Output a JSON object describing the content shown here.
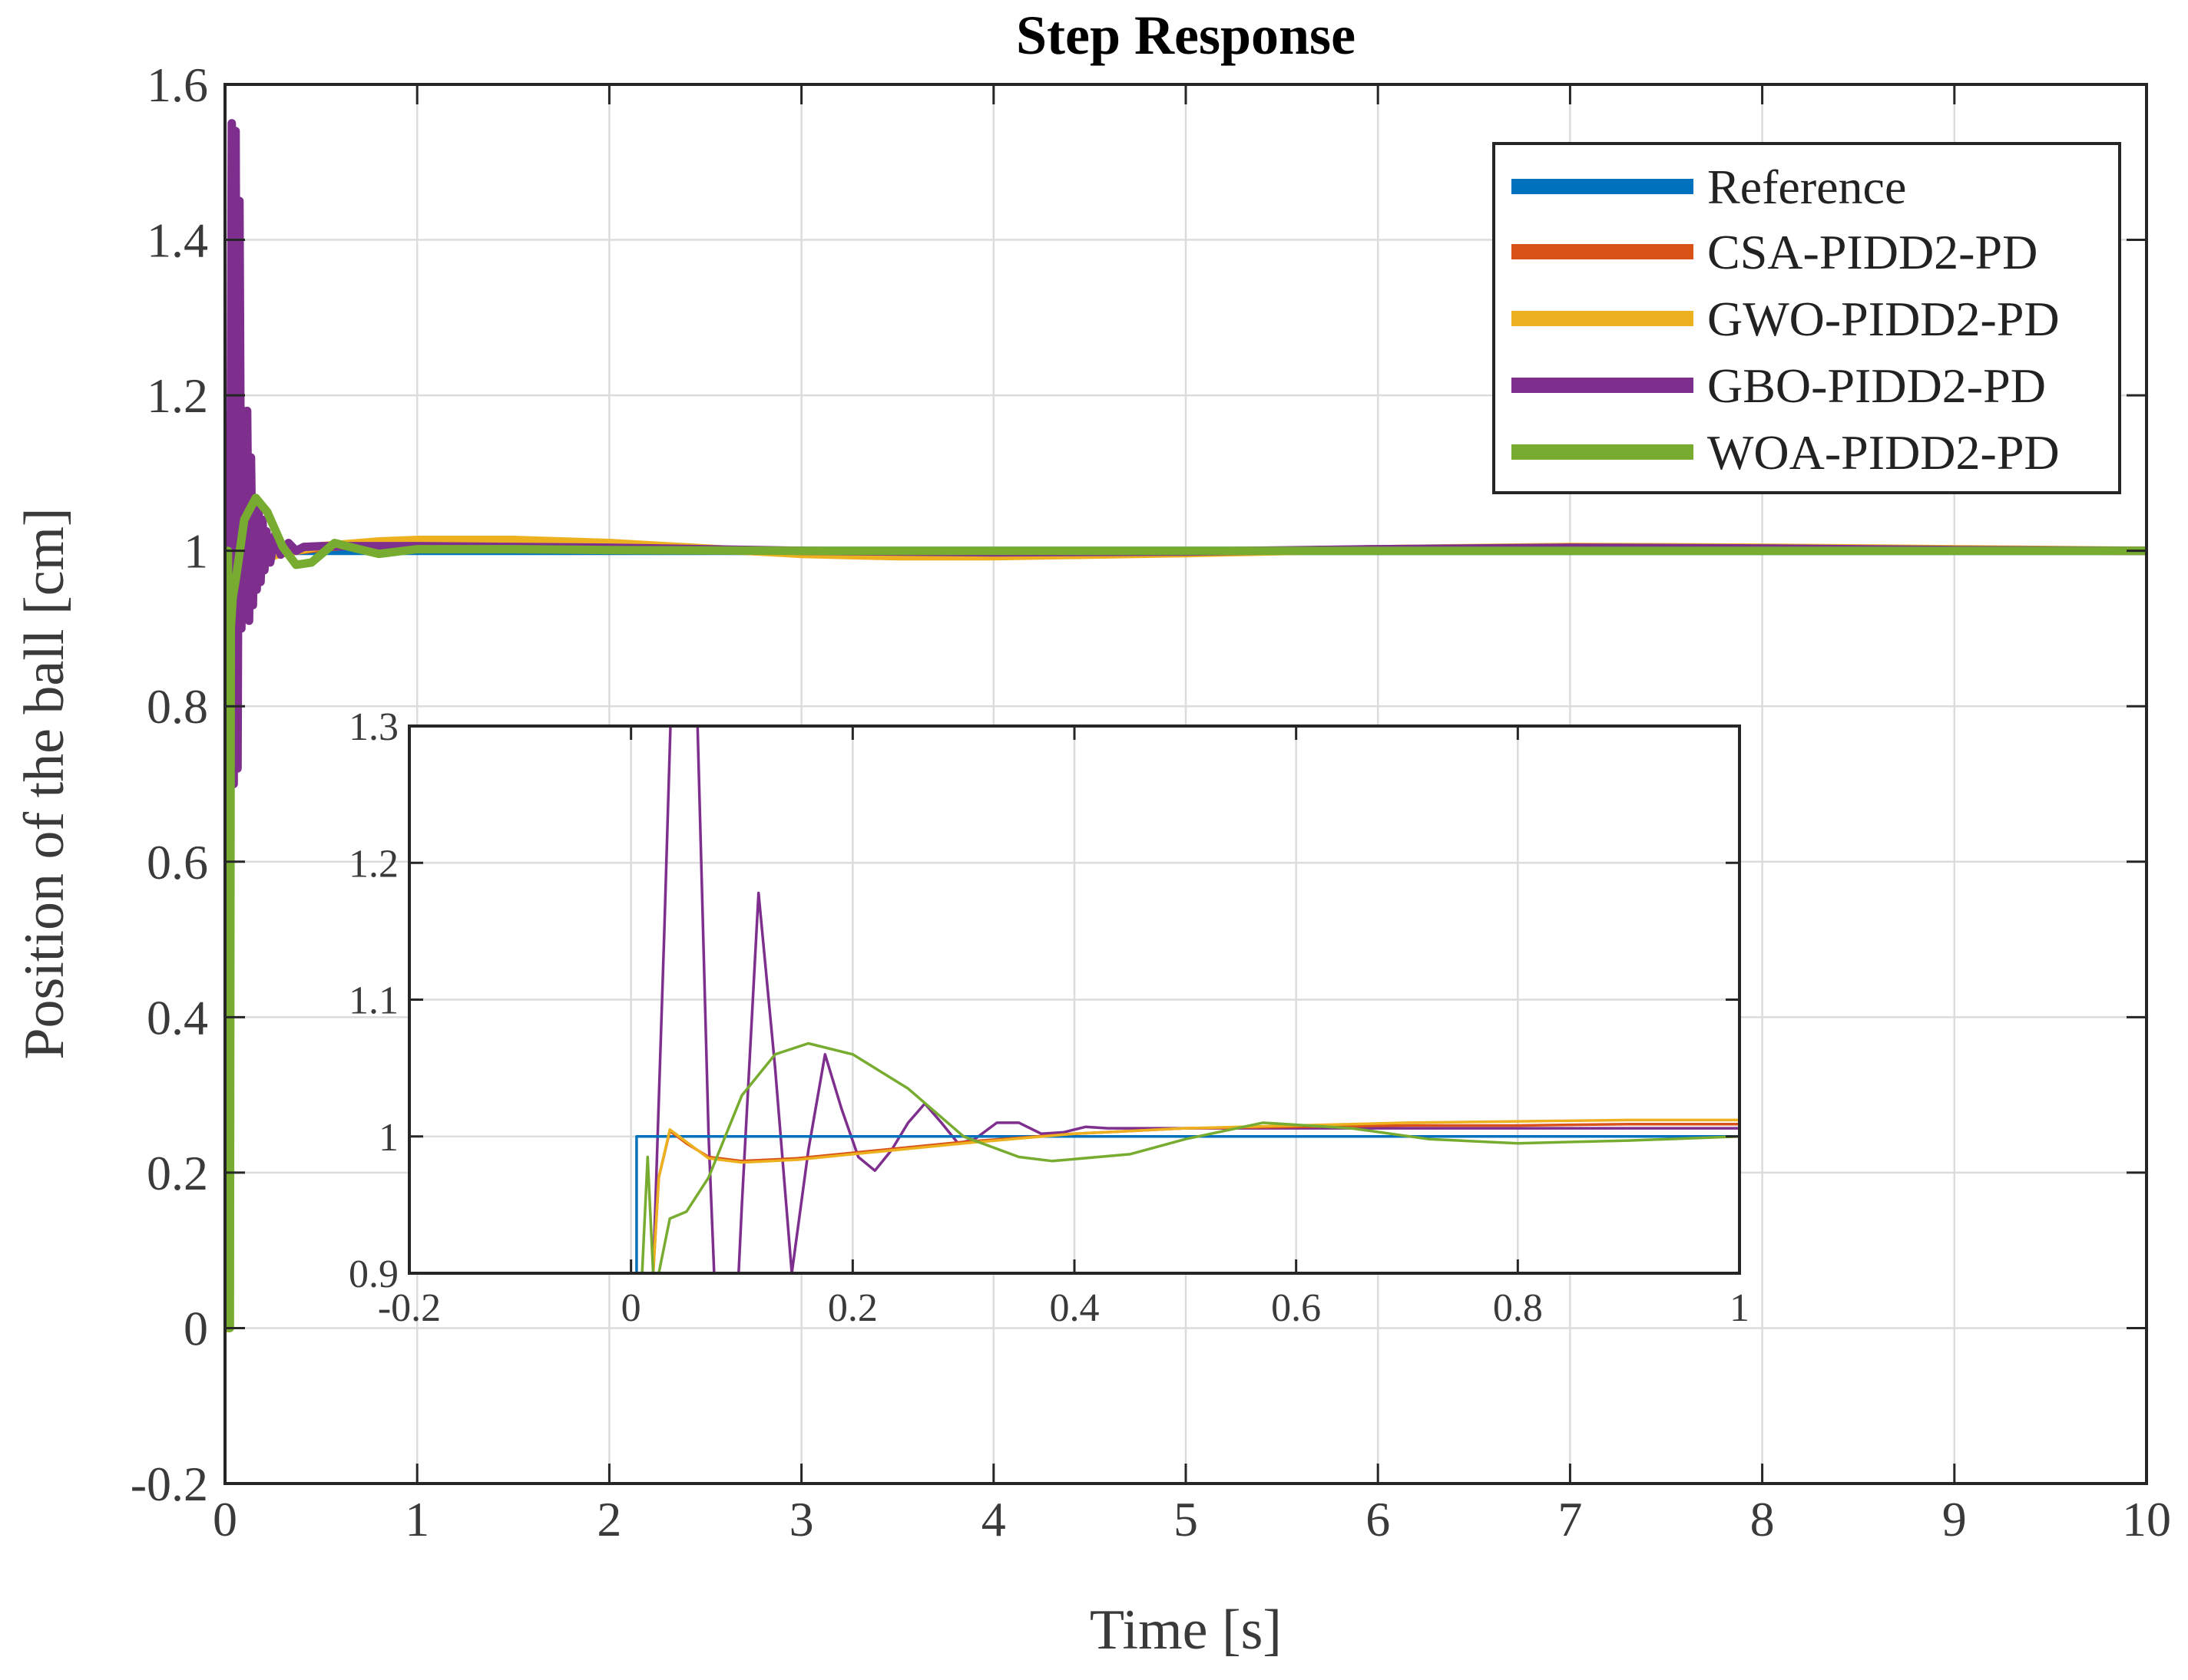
{
  "chart_data": [
    {
      "id": "main",
      "type": "line",
      "title": "Step Response",
      "xlabel": "Time [s]",
      "ylabel": "Position of the ball [cm]",
      "xlim": [
        0,
        10
      ],
      "ylim": [
        -0.2,
        1.6
      ],
      "xticks": [
        0,
        1,
        2,
        3,
        4,
        5,
        6,
        7,
        8,
        9,
        10
      ],
      "yticks": [
        -0.2,
        0,
        0.2,
        0.4,
        0.6,
        0.8,
        1,
        1.2,
        1.4,
        1.6
      ],
      "xtick_labels": [
        "0",
        "1",
        "2",
        "3",
        "4",
        "5",
        "6",
        "7",
        "8",
        "9",
        "10"
      ],
      "ytick_labels": [
        "-0.2",
        "0",
        "0.2",
        "0.4",
        "0.6",
        "0.8",
        "1",
        "1.2",
        "1.4",
        "1.6"
      ],
      "grid": true,
      "legend_position": "top-right",
      "series": [
        {
          "name": "Reference",
          "color": "#0072BD",
          "x": [
            0,
            0.02,
            0.02,
            10
          ],
          "y": [
            0,
            0,
            1,
            1
          ]
        },
        {
          "name": "CSA-PIDD2-PD",
          "color": "#D95319",
          "x": [
            0,
            0.02,
            0.03,
            0.05,
            0.1,
            0.2,
            0.3,
            0.5,
            0.8,
            1.0,
            1.5,
            2.0,
            2.5,
            3.0,
            3.5,
            4.0,
            4.5,
            5.0,
            6.0,
            7.0,
            8.0,
            9.0,
            10.0
          ],
          "y": [
            0,
            0,
            0.9,
            1.004,
            0.985,
            0.992,
            0.998,
            1.004,
            1.01,
            1.012,
            1.012,
            1.008,
            1.002,
            0.997,
            0.995,
            0.995,
            0.996,
            0.998,
            1.002,
            1.004,
            1.003,
            1.001,
            1.0
          ]
        },
        {
          "name": "GWO-PIDD2-PD",
          "color": "#EDB120",
          "x": [
            0,
            0.02,
            0.03,
            0.05,
            0.1,
            0.2,
            0.3,
            0.5,
            0.8,
            1.0,
            1.5,
            2.0,
            2.5,
            3.0,
            3.5,
            4.0,
            4.5,
            5.0,
            6.0,
            7.0,
            8.0,
            9.0,
            10.0
          ],
          "y": [
            0,
            0,
            0.95,
            1.004,
            0.983,
            0.99,
            0.997,
            1.006,
            1.012,
            1.014,
            1.014,
            1.01,
            1.003,
            0.996,
            0.993,
            0.993,
            0.995,
            0.997,
            1.002,
            1.005,
            1.004,
            1.002,
            1.0
          ]
        },
        {
          "name": "GBO-PIDD2-PD",
          "color": "#7E2F8E",
          "x": [
            0,
            0.015,
            0.025,
            0.035,
            0.045,
            0.055,
            0.065,
            0.075,
            0.085,
            0.095,
            0.105,
            0.115,
            0.125,
            0.135,
            0.145,
            0.155,
            0.165,
            0.175,
            0.185,
            0.195,
            0.205,
            0.215,
            0.235,
            0.26,
            0.29,
            0.33,
            0.37,
            0.41,
            0.5,
            0.6,
            0.8,
            1.0,
            2.0,
            3.0,
            4.0,
            5.0,
            6.0,
            7.0,
            8.0,
            9.0,
            10.0
          ],
          "y": [
            0,
            0.05,
            0.8,
            1.55,
            0.7,
            1.54,
            0.72,
            1.45,
            0.9,
            1.18,
            0.93,
            1.18,
            0.91,
            1.12,
            0.93,
            1.06,
            0.95,
            1.05,
            0.96,
            1.04,
            0.975,
            1.025,
            0.985,
            1.02,
            0.995,
            1.01,
            1.0,
            1.005,
            1.006,
            1.006,
            1.006,
            1.006,
            1.004,
            1.0,
            0.998,
            0.999,
            1.002,
            1.004,
            1.003,
            1.001,
            1.0
          ]
        },
        {
          "name": "WOA-PIDD2-PD",
          "color": "#77AC30",
          "x": [
            0,
            0.01,
            0.015,
            0.02,
            0.025,
            0.03,
            0.04,
            0.06,
            0.1,
            0.16,
            0.22,
            0.3,
            0.37,
            0.45,
            0.57,
            0.68,
            0.8,
            1.0,
            1.5,
            2.0,
            3.0,
            4.0,
            5.0,
            6.0,
            7.0,
            8.0,
            9.0,
            10.0
          ],
          "y": [
            0,
            0.3,
            1.0,
            0.3,
            0.0,
            0.9,
            0.94,
            0.97,
            1.04,
            1.068,
            1.05,
            1.005,
            0.982,
            0.985,
            1.01,
            1.003,
            0.996,
            1.002,
            1.002,
            1.001,
            1.0,
            1.0,
            1.0,
            1.0,
            1.0,
            1.0,
            1.0,
            1.0
          ]
        }
      ]
    },
    {
      "id": "inset",
      "type": "line",
      "title": "",
      "xlabel": "",
      "ylabel": "",
      "xlim": [
        -0.2,
        1
      ],
      "ylim": [
        0.9,
        1.3
      ],
      "xticks": [
        -0.2,
        0,
        0.2,
        0.4,
        0.6,
        0.8,
        1
      ],
      "yticks": [
        0.9,
        1,
        1.1,
        1.2,
        1.3
      ],
      "xtick_labels": [
        "-0.2",
        "0",
        "0.2",
        "0.4",
        "0.6",
        "0.8",
        "1"
      ],
      "ytick_labels": [
        "0.9",
        "1",
        "1.1",
        "1.2",
        "1.3"
      ],
      "grid": true,
      "series": [
        {
          "name": "Reference",
          "color": "#0072BD",
          "x": [
            0.005,
            0.005,
            1.0
          ],
          "y": [
            0.9,
            1.0,
            1.0
          ]
        },
        {
          "name": "CSA-PIDD2-PD",
          "color": "#D95319",
          "x": [
            0.02,
            0.025,
            0.035,
            0.05,
            0.07,
            0.1,
            0.15,
            0.2,
            0.3,
            0.4,
            0.5,
            0.6,
            0.7,
            0.8,
            0.9,
            1.0
          ],
          "y": [
            0.9,
            0.97,
            1.004,
            0.995,
            0.985,
            0.982,
            0.984,
            0.988,
            0.996,
            1.002,
            1.006,
            1.007,
            1.008,
            1.008,
            1.009,
            1.009
          ]
        },
        {
          "name": "GWO-PIDD2-PD",
          "color": "#EDB120",
          "x": [
            0.02,
            0.025,
            0.035,
            0.05,
            0.07,
            0.1,
            0.15,
            0.2,
            0.3,
            0.4,
            0.5,
            0.6,
            0.7,
            0.8,
            0.9,
            1.0
          ],
          "y": [
            0.9,
            0.97,
            1.005,
            0.996,
            0.984,
            0.981,
            0.983,
            0.987,
            0.995,
            1.002,
            1.006,
            1.008,
            1.01,
            1.011,
            1.012,
            1.012
          ]
        },
        {
          "name": "GBO-PIDD2-PD",
          "color": "#7E2F8E",
          "x": [
            0.02,
            0.03,
            0.04,
            0.05,
            0.06,
            0.07,
            0.08,
            0.09,
            0.1,
            0.115,
            0.13,
            0.145,
            0.16,
            0.175,
            0.19,
            0.205,
            0.22,
            0.235,
            0.25,
            0.265,
            0.28,
            0.295,
            0.31,
            0.33,
            0.35,
            0.37,
            0.39,
            0.41,
            0.43,
            0.45,
            0.5,
            0.6,
            0.7,
            0.8,
            0.9,
            1.0
          ],
          "y": [
            0.9,
            1.15,
            1.42,
            1.5,
            1.3,
            1.0,
            0.8,
            0.78,
            0.95,
            1.178,
            1.05,
            0.9,
            0.99,
            1.06,
            1.02,
            0.985,
            0.975,
            0.99,
            1.01,
            1.024,
            1.01,
            0.995,
            0.998,
            1.01,
            1.01,
            1.002,
            1.003,
            1.007,
            1.006,
            1.006,
            1.006,
            1.006,
            1.006,
            1.006,
            1.006,
            1.006
          ]
        },
        {
          "name": "WOA-PIDD2-PD",
          "color": "#77AC30",
          "x": [
            0.01,
            0.015,
            0.02,
            0.025,
            0.03,
            0.035,
            0.05,
            0.07,
            0.1,
            0.13,
            0.16,
            0.2,
            0.25,
            0.3,
            0.35,
            0.38,
            0.45,
            0.5,
            0.57,
            0.65,
            0.72,
            0.8,
            0.9,
            1.0
          ],
          "y": [
            0.9,
            0.985,
            0.9,
            0.9,
            0.92,
            0.94,
            0.945,
            0.97,
            1.03,
            1.06,
            1.068,
            1.06,
            1.035,
            1.0,
            0.985,
            0.982,
            0.987,
            0.998,
            1.01,
            1.006,
            0.998,
            0.995,
            0.997,
            1.0
          ]
        }
      ]
    }
  ]
}
